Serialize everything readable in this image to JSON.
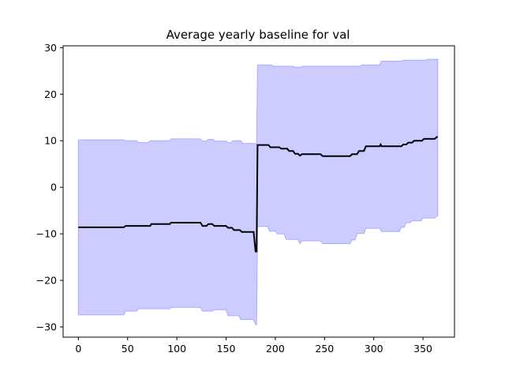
{
  "chart_data": {
    "type": "line",
    "title": "Average yearly baseline for val",
    "xlabel": "",
    "ylabel": "",
    "xlim": [
      -15.5,
      382
    ],
    "ylim": [
      -32.2,
      30.4
    ],
    "xticks": [
      0,
      50,
      100,
      150,
      200,
      250,
      300,
      350
    ],
    "yticks": [
      -30,
      -20,
      -10,
      0,
      10,
      20,
      30
    ],
    "grid": false,
    "colors": {
      "line": "#000000",
      "band_fill": "#ccccff",
      "band_edge": "#aaaaff"
    },
    "series": [
      {
        "role": "mean",
        "points": [
          [
            0,
            -8.6
          ],
          [
            46,
            -8.6
          ],
          [
            48,
            -8.3
          ],
          [
            73,
            -8.3
          ],
          [
            74,
            -7.9
          ],
          [
            93,
            -7.9
          ],
          [
            94,
            -7.6
          ],
          [
            124,
            -7.6
          ],
          [
            126,
            -8.3
          ],
          [
            130,
            -8.3
          ],
          [
            132,
            -7.9
          ],
          [
            136,
            -7.9
          ],
          [
            138,
            -8.3
          ],
          [
            150,
            -8.3
          ],
          [
            152,
            -8.7
          ],
          [
            156,
            -8.7
          ],
          [
            158,
            -9.2
          ],
          [
            164,
            -9.2
          ],
          [
            166,
            -9.6
          ],
          [
            178,
            -9.6
          ],
          [
            180,
            -13.8
          ],
          [
            181,
            -13.8
          ],
          [
            182,
            9.1
          ],
          [
            193,
            9.1
          ],
          [
            195,
            8.6
          ],
          [
            204,
            8.6
          ],
          [
            206,
            8.3
          ],
          [
            212,
            8.3
          ],
          [
            214,
            7.8
          ],
          [
            218,
            7.8
          ],
          [
            220,
            7.2
          ],
          [
            223,
            7.2
          ],
          [
            225,
            6.8
          ],
          [
            227,
            7.1
          ],
          [
            246,
            7.1
          ],
          [
            248,
            6.7
          ],
          [
            276,
            6.7
          ],
          [
            278,
            7.1
          ],
          [
            283,
            7.1
          ],
          [
            285,
            7.8
          ],
          [
            290,
            7.8
          ],
          [
            292,
            8.8
          ],
          [
            306,
            8.8
          ],
          [
            307,
            9.2
          ],
          [
            308,
            8.8
          ],
          [
            328,
            8.8
          ],
          [
            330,
            9.2
          ],
          [
            333,
            9.2
          ],
          [
            335,
            9.6
          ],
          [
            339,
            9.6
          ],
          [
            341,
            10.0
          ],
          [
            349,
            10.0
          ],
          [
            351,
            10.4
          ],
          [
            362,
            10.4
          ],
          [
            364,
            10.8
          ],
          [
            365,
            10.8
          ]
        ]
      },
      {
        "role": "upper",
        "points": [
          [
            0,
            10.2
          ],
          [
            46,
            10.2
          ],
          [
            48,
            10.0
          ],
          [
            59,
            10.0
          ],
          [
            61,
            9.6
          ],
          [
            71,
            9.6
          ],
          [
            73,
            10.0
          ],
          [
            93,
            10.0
          ],
          [
            94,
            10.4
          ],
          [
            124,
            10.4
          ],
          [
            126,
            9.9
          ],
          [
            130,
            9.9
          ],
          [
            132,
            10.3
          ],
          [
            137,
            10.3
          ],
          [
            139,
            9.9
          ],
          [
            150,
            9.9
          ],
          [
            152,
            9.6
          ],
          [
            155,
            9.6
          ],
          [
            157,
            10.0
          ],
          [
            165,
            10.0
          ],
          [
            167,
            9.4
          ],
          [
            179,
            9.4
          ],
          [
            181,
            9.2
          ],
          [
            182,
            26.3
          ],
          [
            196,
            26.3
          ],
          [
            198,
            26.0
          ],
          [
            218,
            26.0
          ],
          [
            220,
            25.8
          ],
          [
            226,
            25.8
          ],
          [
            228,
            26.0
          ],
          [
            286,
            26.0
          ],
          [
            288,
            26.3
          ],
          [
            306,
            26.3
          ],
          [
            308,
            27.1
          ],
          [
            328,
            27.1
          ],
          [
            330,
            27.3
          ],
          [
            352,
            27.3
          ],
          [
            354,
            27.5
          ],
          [
            365,
            27.5
          ]
        ]
      },
      {
        "role": "lower",
        "points": [
          [
            0,
            -27.4
          ],
          [
            46,
            -27.4
          ],
          [
            48,
            -26.6
          ],
          [
            59,
            -26.6
          ],
          [
            61,
            -26.1
          ],
          [
            93,
            -26.1
          ],
          [
            94,
            -25.8
          ],
          [
            124,
            -25.8
          ],
          [
            126,
            -26.6
          ],
          [
            136,
            -26.6
          ],
          [
            138,
            -26.3
          ],
          [
            150,
            -26.3
          ],
          [
            152,
            -27.6
          ],
          [
            163,
            -27.6
          ],
          [
            165,
            -28.4
          ],
          [
            178,
            -28.4
          ],
          [
            180,
            -29.5
          ],
          [
            181,
            -29.5
          ],
          [
            182,
            -8.4
          ],
          [
            192,
            -8.4
          ],
          [
            194,
            -9.4
          ],
          [
            200,
            -9.4
          ],
          [
            202,
            -10.0
          ],
          [
            209,
            -10.0
          ],
          [
            211,
            -11.2
          ],
          [
            223,
            -11.2
          ],
          [
            225,
            -12.1
          ],
          [
            227,
            -11.5
          ],
          [
            246,
            -11.5
          ],
          [
            248,
            -12.1
          ],
          [
            276,
            -12.1
          ],
          [
            278,
            -11.3
          ],
          [
            281,
            -11.3
          ],
          [
            283,
            -9.9
          ],
          [
            290,
            -9.9
          ],
          [
            292,
            -8.8
          ],
          [
            306,
            -8.8
          ],
          [
            308,
            -9.5
          ],
          [
            326,
            -9.5
          ],
          [
            328,
            -8.6
          ],
          [
            331,
            -8.6
          ],
          [
            333,
            -7.6
          ],
          [
            337,
            -7.6
          ],
          [
            339,
            -7.2
          ],
          [
            348,
            -7.2
          ],
          [
            350,
            -6.6
          ],
          [
            362,
            -6.6
          ],
          [
            364,
            -6.2
          ],
          [
            365,
            -6.2
          ]
        ]
      }
    ]
  }
}
